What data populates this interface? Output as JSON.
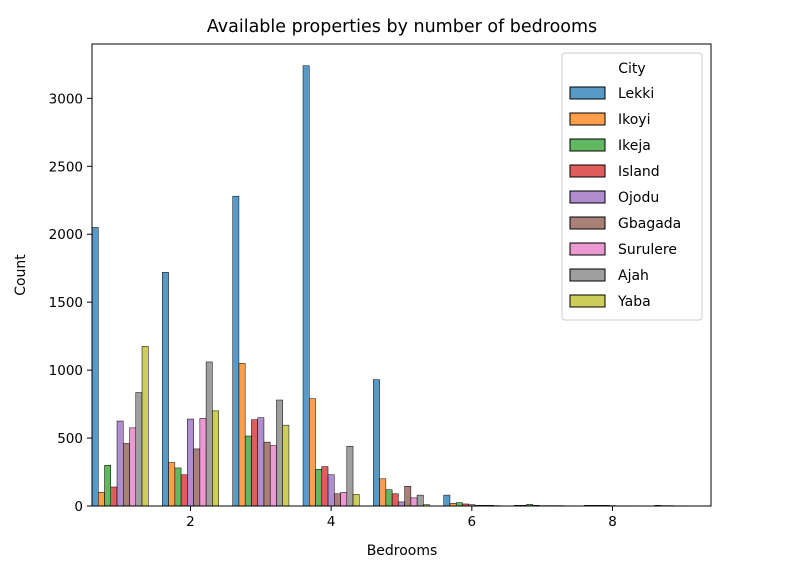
{
  "colors": {
    "Lekki": "#1f77b4",
    "Ikoyi": "#ff7f0e",
    "Ikeja": "#2ca02c",
    "Island": "#d62728",
    "Ojodu": "#9467bd",
    "Gbagada": "#8c564b",
    "Surulere": "#e377c2",
    "Ajah": "#7f7f7f",
    "Yaba": "#bcbd22"
  },
  "chart_data": {
    "type": "bar",
    "title": "Available properties by number of bedrooms",
    "xlabel": "Bedrooms",
    "ylabel": "Count",
    "legend_title": "City",
    "legend_position": "top-right",
    "grid": false,
    "xlim": [
      0.6,
      9.4
    ],
    "ylim": [
      0,
      3400
    ],
    "xticks": [
      2,
      4,
      6,
      8
    ],
    "yticks": [
      0,
      500,
      1000,
      1500,
      2000,
      2500,
      3000
    ],
    "categories": [
      1,
      2,
      3,
      4,
      5,
      6,
      7,
      8,
      9
    ],
    "series": [
      {
        "name": "Lekki",
        "values": [
          2050,
          1720,
          2280,
          3240,
          930,
          80,
          5,
          5,
          5
        ]
      },
      {
        "name": "Ikoyi",
        "values": [
          100,
          320,
          1050,
          790,
          200,
          20,
          5,
          5,
          3
        ]
      },
      {
        "name": "Ikeja",
        "values": [
          300,
          280,
          515,
          270,
          120,
          25,
          12,
          5,
          3
        ]
      },
      {
        "name": "Island",
        "values": [
          140,
          230,
          635,
          290,
          90,
          15,
          5,
          5,
          2
        ]
      },
      {
        "name": "Ojodu",
        "values": [
          625,
          640,
          650,
          230,
          30,
          10,
          3,
          3,
          2
        ]
      },
      {
        "name": "Gbagada",
        "values": [
          460,
          420,
          470,
          90,
          145,
          5,
          3,
          2,
          1
        ]
      },
      {
        "name": "Surulere",
        "values": [
          575,
          645,
          445,
          100,
          60,
          5,
          3,
          2,
          1
        ]
      },
      {
        "name": "Ajah",
        "values": [
          835,
          1060,
          780,
          440,
          80,
          5,
          3,
          2,
          1
        ]
      },
      {
        "name": "Yaba",
        "values": [
          1175,
          700,
          595,
          85,
          10,
          3,
          2,
          1,
          1
        ]
      }
    ]
  }
}
